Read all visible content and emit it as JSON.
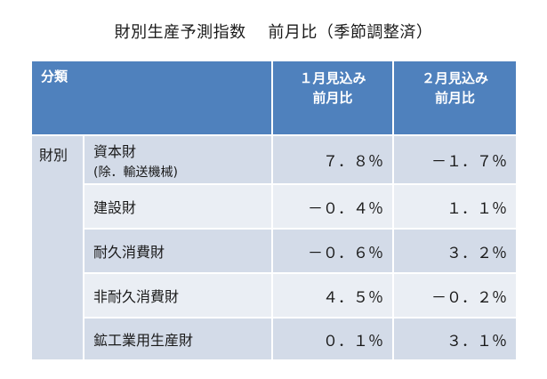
{
  "title": "財別生産予測指数　 前月比（季節調整済）",
  "header": {
    "category": "分類",
    "col1_line1": "１月見込み",
    "col1_line2": "前月比",
    "col2_line1": "２月見込み",
    "col2_line2": "前月比"
  },
  "group_label": "財別",
  "rows": [
    {
      "name": "資本財",
      "sub": "(除．輸送機械)",
      "jan": "７．８％",
      "feb": "－１．７％"
    },
    {
      "name": "建設財",
      "sub": "",
      "jan": "－０．４％",
      "feb": "１．１％"
    },
    {
      "name": "耐久消費財",
      "sub": "",
      "jan": "－０．６％",
      "feb": "３．２％"
    },
    {
      "name": "非耐久消費財",
      "sub": "",
      "jan": "４．５％",
      "feb": "－０．２％"
    },
    {
      "name": "鉱工業用生産財",
      "sub": "",
      "jan": "０．１％",
      "feb": "３．１％"
    }
  ]
}
